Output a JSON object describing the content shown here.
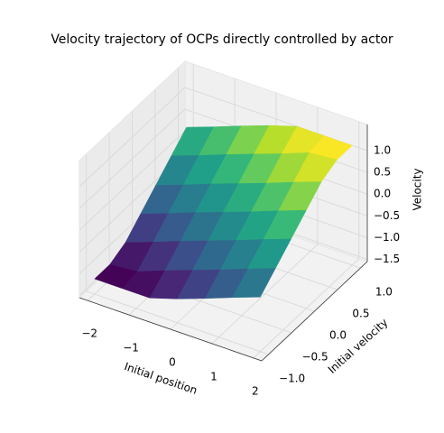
{
  "chart_data": {
    "type": "surface",
    "title": "Velocity trajectory of OCPs directly controlled by actor",
    "xlabel": "Initial position",
    "ylabel": "Initial velocity",
    "zlabel": "Velocity",
    "x": [
      -2,
      -1.33,
      -0.67,
      0,
      0.67,
      1.33,
      2
    ],
    "y": [
      -1,
      -0.67,
      -0.33,
      0,
      0.33,
      0.67,
      1
    ],
    "z": [
      [
        -1.2,
        -1.2,
        -1.03,
        -0.7,
        -0.37,
        -0.03,
        0.3
      ],
      [
        -1.2,
        -1.14,
        -0.8,
        -0.47,
        -0.14,
        0.2,
        0.53
      ],
      [
        -1.2,
        -0.9,
        -0.56,
        -0.23,
        0.1,
        0.44,
        0.77
      ],
      [
        -1,
        -0.67,
        -0.33,
        0,
        0.33,
        0.67,
        1
      ],
      [
        -0.77,
        -0.44,
        -0.1,
        0.23,
        0.56,
        0.9,
        1.2
      ],
      [
        -0.53,
        -0.2,
        0.14,
        0.47,
        0.8,
        1.14,
        1.2
      ],
      [
        -0.3,
        0.03,
        0.37,
        0.7,
        1.03,
        1.2,
        1.2
      ]
    ],
    "colormap": "viridis",
    "xlim": [
      -2.2,
      2.2
    ],
    "ylim": [
      -1.15,
      1.15
    ],
    "zlim": [
      -1.55,
      1.6
    ],
    "xticks": [
      {
        "value": -2,
        "label": "−2"
      },
      {
        "value": -1,
        "label": "−1"
      },
      0,
      1,
      2
    ],
    "yticks": [
      {
        "value": -1,
        "label": "−1.0"
      },
      {
        "value": -0.5,
        "label": "−0.5"
      },
      {
        "value": 0,
        "label": "0.0"
      },
      {
        "value": 0.5,
        "label": "0.5"
      },
      {
        "value": 1,
        "label": "1.0"
      }
    ],
    "zticks": [
      {
        "value": -1.5,
        "label": "−1.5"
      },
      {
        "value": -1,
        "label": "−1.0"
      },
      {
        "value": -0.5,
        "label": "−0.5"
      },
      {
        "value": 0,
        "label": "0.0"
      },
      {
        "value": 0.5,
        "label": "0.5"
      },
      {
        "value": 1,
        "label": "1.0"
      }
    ],
    "grid": true
  }
}
